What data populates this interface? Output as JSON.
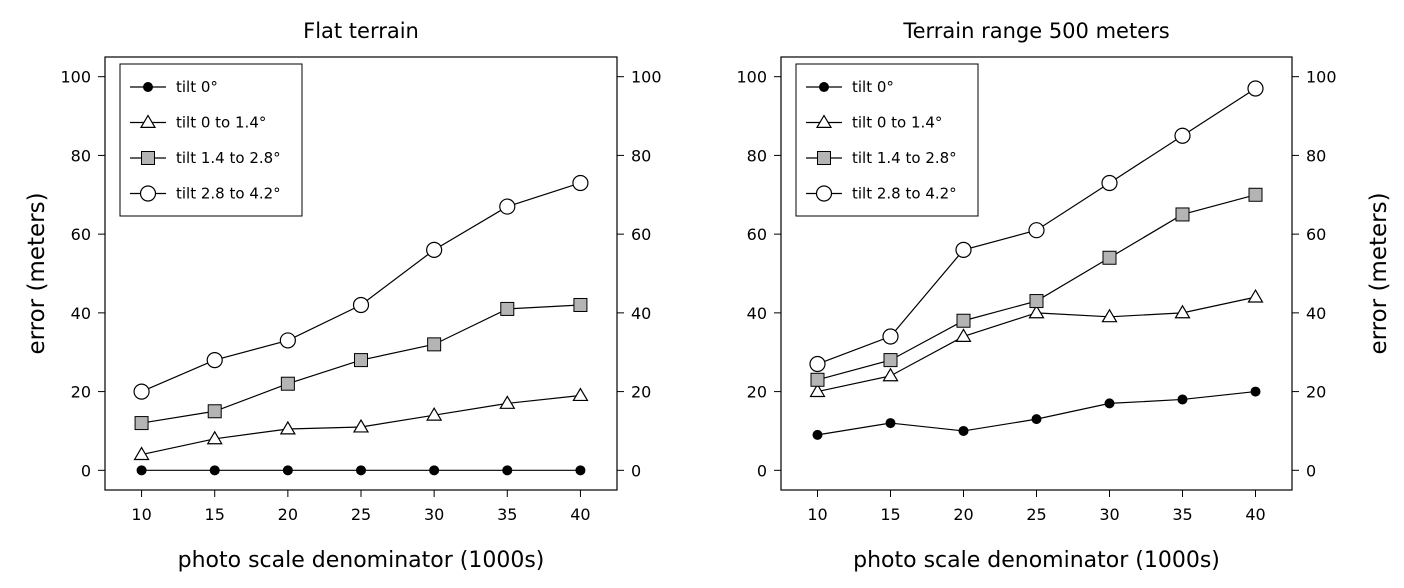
{
  "chart_data": [
    {
      "type": "line",
      "title": "Flat terrain",
      "xlabel": "photo scale denominator (1000s)",
      "ylabel": "error (meters)",
      "ylabel_side": "left",
      "x": [
        10,
        15,
        20,
        25,
        30,
        35,
        40
      ],
      "xticks": [
        "10",
        "15",
        "20",
        "25",
        "30",
        "35",
        "40"
      ],
      "xlim": [
        7.5,
        42.5
      ],
      "ylim": [
        -5,
        105
      ],
      "yticks": [
        "0",
        "20",
        "40",
        "60",
        "80",
        "100"
      ],
      "right_axis_ticks": true,
      "grid": false,
      "legend_position": "top-left",
      "series": [
        {
          "name": "tilt 0°",
          "marker": "filled-circle",
          "values": [
            0,
            0,
            0,
            0,
            0,
            0,
            0
          ]
        },
        {
          "name": "tilt 0 to 1.4°",
          "marker": "open-triangle",
          "values": [
            4,
            8,
            10.5,
            11,
            14,
            17,
            19
          ]
        },
        {
          "name": "tilt 1.4 to 2.8°",
          "marker": "gray-square",
          "values": [
            12,
            15,
            22,
            28,
            32,
            41,
            42
          ]
        },
        {
          "name": "tilt 2.8 to 4.2°",
          "marker": "open-circle",
          "values": [
            20,
            28,
            33,
            42,
            56,
            67,
            73
          ]
        }
      ]
    },
    {
      "type": "line",
      "title": "Terrain range 500 meters",
      "xlabel": "photo scale denominator (1000s)",
      "ylabel": "error (meters)",
      "ylabel_side": "right",
      "x": [
        10,
        15,
        20,
        25,
        30,
        35,
        40
      ],
      "xticks": [
        "10",
        "15",
        "20",
        "25",
        "30",
        "35",
        "40"
      ],
      "xlim": [
        7.5,
        42.5
      ],
      "ylim": [
        -5,
        105
      ],
      "yticks": [
        "0",
        "20",
        "40",
        "60",
        "80",
        "100"
      ],
      "right_axis_ticks": true,
      "grid": false,
      "legend_position": "top-left",
      "series": [
        {
          "name": "tilt 0°",
          "marker": "filled-circle",
          "values": [
            9,
            12,
            10,
            13,
            17,
            18,
            20
          ]
        },
        {
          "name": "tilt 0 to 1.4°",
          "marker": "open-triangle",
          "values": [
            20,
            24,
            34,
            40,
            39,
            40,
            44
          ]
        },
        {
          "name": "tilt 1.4 to 2.8°",
          "marker": "gray-square",
          "values": [
            23,
            28,
            38,
            43,
            54,
            65,
            70
          ]
        },
        {
          "name": "tilt 2.8 to 4.2°",
          "marker": "open-circle",
          "values": [
            27,
            34,
            56,
            61,
            73,
            85,
            97
          ]
        }
      ]
    }
  ],
  "colors": {
    "line": "#000000",
    "square_fill": "#b4b4b4",
    "open_fill": "#ffffff"
  }
}
